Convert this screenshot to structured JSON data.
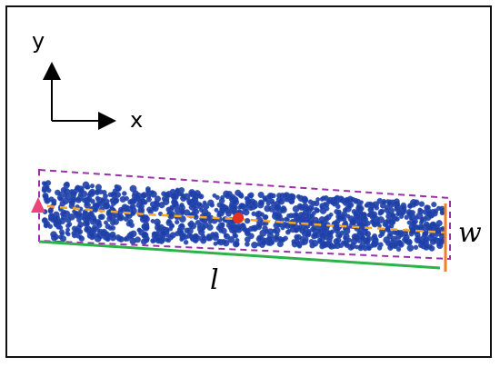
{
  "axes": {
    "y_label": "y",
    "x_label": "x"
  },
  "dimensions": {
    "length_label": "l",
    "width_label": "w"
  },
  "colors": {
    "points": "#1f3fa6",
    "bounding_box": "#9b2fa8",
    "centerline": "#f5a623",
    "center_point": "#e53020",
    "start_marker": "#e8457a",
    "length_line": "#2bb34a",
    "width_line": "#f07f2a",
    "frame": "#111111"
  },
  "icons": {
    "start_marker": "triangle-marker-icon",
    "center_point": "circle-marker-icon",
    "axis_arrows": "arrow-icon"
  }
}
